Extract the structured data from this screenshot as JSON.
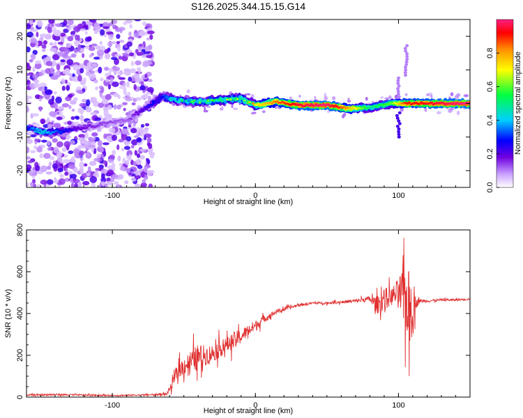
{
  "title": "S126.2025.344.15.15.G14",
  "chart_data": [
    {
      "type": "heatmap",
      "xlabel": "Height of straight line (km)",
      "ylabel": "Frequency (Hz)",
      "xlim": [
        -160,
        150
      ],
      "ylim": [
        -25,
        25
      ],
      "xticks": [
        -100,
        0,
        100
      ],
      "yticks": [
        -20,
        -10,
        0,
        10,
        20
      ],
      "colorbar": {
        "label": "Normalized spectral amplitude",
        "range": [
          0,
          1
        ],
        "ticks": [
          "0.0",
          "0.2",
          "0.4",
          "0.6",
          "0.8"
        ]
      },
      "ridge": [
        {
          "x": -160,
          "f": -7,
          "a": 0.3
        },
        {
          "x": -150,
          "f": -8.5,
          "a": 0.45
        },
        {
          "x": -140,
          "f": -8.5,
          "a": 0.35
        },
        {
          "x": -125,
          "f": -7.5,
          "a": 0.2
        },
        {
          "x": -110,
          "f": -6.5,
          "a": 0.15
        },
        {
          "x": -90,
          "f": -5,
          "a": 0.12
        },
        {
          "x": -75,
          "f": -1,
          "a": 0.25
        },
        {
          "x": -65,
          "f": 2,
          "a": 0.35
        },
        {
          "x": -55,
          "f": 1,
          "a": 0.45
        },
        {
          "x": -40,
          "f": 0.5,
          "a": 0.5
        },
        {
          "x": -25,
          "f": 1,
          "a": 0.55
        },
        {
          "x": -10,
          "f": 1.5,
          "a": 0.6
        },
        {
          "x": 0,
          "f": -0.5,
          "a": 0.7
        },
        {
          "x": 15,
          "f": 0.5,
          "a": 0.85
        },
        {
          "x": 30,
          "f": -0.5,
          "a": 0.95
        },
        {
          "x": 50,
          "f": -0.5,
          "a": 1.0
        },
        {
          "x": 65,
          "f": -1.5,
          "a": 0.8
        },
        {
          "x": 80,
          "f": -1.2,
          "a": 0.5
        },
        {
          "x": 95,
          "f": 0,
          "a": 0.6
        },
        {
          "x": 105,
          "f": 0,
          "a": 0.9
        },
        {
          "x": 125,
          "f": 0,
          "a": 0.95
        },
        {
          "x": 145,
          "f": 0,
          "a": 1.0
        }
      ]
    },
    {
      "type": "line",
      "xlabel": "Height of straight line (km)",
      "ylabel": "SNR (10 * v/v)",
      "xlim": [
        -160,
        150
      ],
      "ylim": [
        0,
        800
      ],
      "xticks": [
        -100,
        0,
        100
      ],
      "yticks": [
        0,
        200,
        400,
        600,
        800
      ],
      "color": "#e03030",
      "series": [
        {
          "name": "SNR",
          "x": [
            -160,
            -140,
            -120,
            -100,
            -80,
            -70,
            -62,
            -58,
            -55,
            -50,
            -45,
            -40,
            -35,
            -30,
            -25,
            -20,
            -15,
            -10,
            -5,
            0,
            5,
            10,
            15,
            20,
            25,
            30,
            40,
            50,
            60,
            70,
            80,
            85,
            90,
            95,
            100,
            103,
            106,
            108,
            110,
            112,
            115,
            120,
            130,
            140,
            150
          ],
          "values": [
            10,
            12,
            10,
            8,
            10,
            12,
            15,
            60,
            120,
            150,
            170,
            190,
            200,
            210,
            230,
            250,
            270,
            290,
            320,
            340,
            370,
            390,
            410,
            420,
            430,
            440,
            450,
            450,
            455,
            460,
            470,
            440,
            470,
            480,
            500,
            480,
            460,
            420,
            420,
            450,
            460,
            460,
            465,
            465,
            470
          ],
          "spread": [
            5,
            6,
            5,
            4,
            5,
            6,
            8,
            30,
            50,
            60,
            80,
            90,
            70,
            60,
            60,
            50,
            60,
            50,
            40,
            40,
            25,
            20,
            15,
            15,
            10,
            10,
            8,
            8,
            10,
            12,
            20,
            60,
            80,
            60,
            100,
            200,
            250,
            250,
            200,
            40,
            12,
            10,
            8,
            8,
            8
          ]
        }
      ]
    }
  ]
}
